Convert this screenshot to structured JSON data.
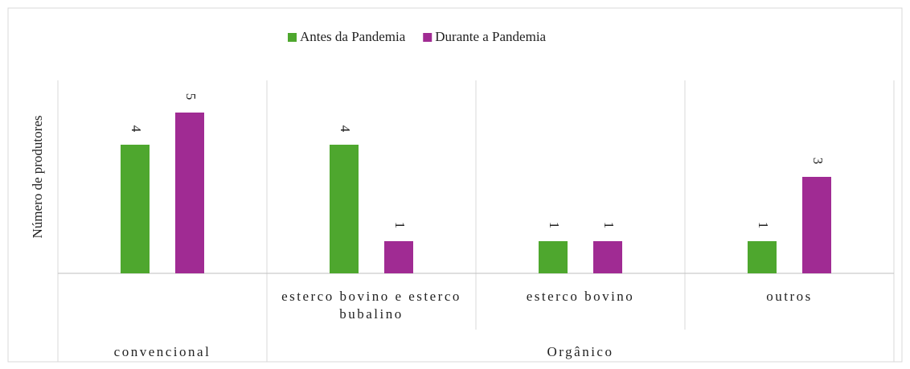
{
  "chart_data": {
    "type": "bar",
    "y_label": "Número de produtores",
    "categories": [
      null,
      "esterco bovino e esterco bubalino",
      "esterco bovino",
      "outros"
    ],
    "category_groups": [
      {
        "label": "convencional",
        "count": 1
      },
      {
        "label": "Orgânico",
        "count": 3
      }
    ],
    "series": [
      {
        "name": "Antes da Pandemia",
        "color": "#4ea72e",
        "values": [
          4,
          4,
          1,
          1
        ]
      },
      {
        "name": "Durante a Pandemia",
        "color": "#a02b93",
        "values": [
          5,
          1,
          1,
          3
        ]
      }
    ],
    "ylim": [
      0,
      6
    ],
    "legend": "top",
    "grid": true
  }
}
